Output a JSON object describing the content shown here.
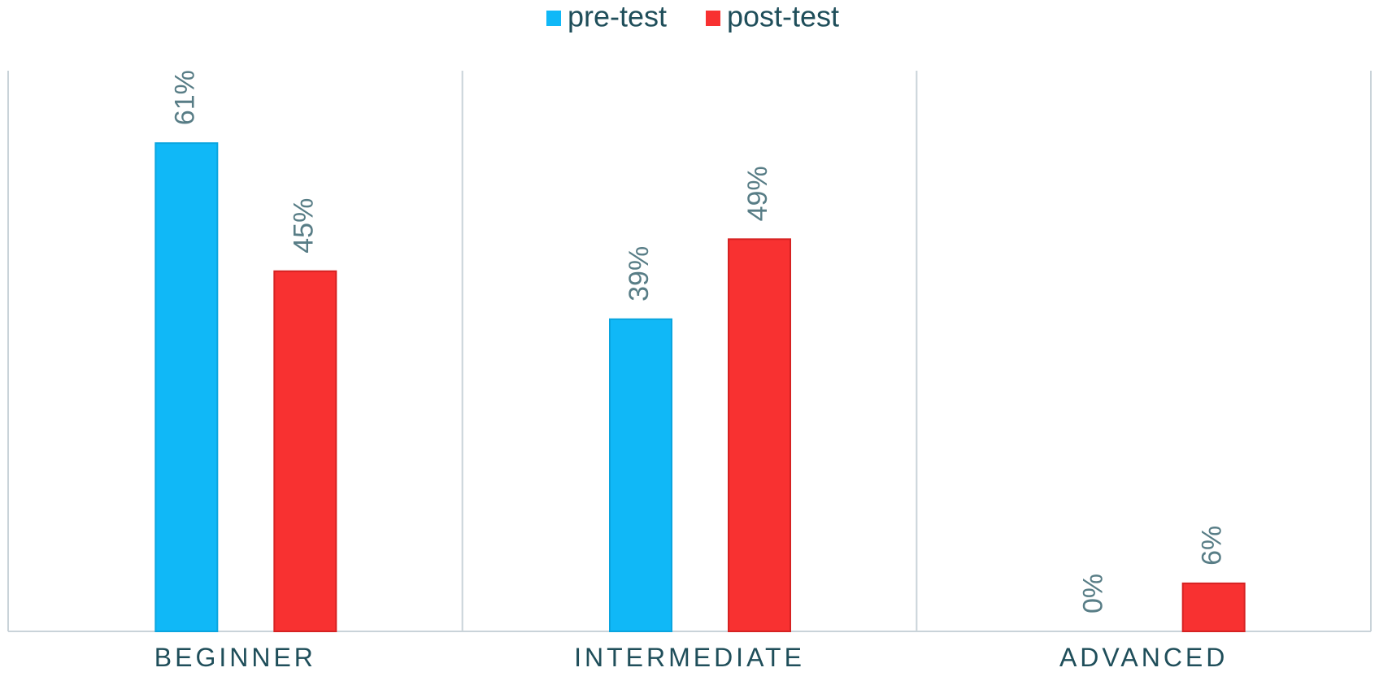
{
  "chart_data": {
    "type": "bar",
    "title": "",
    "xlabel": "",
    "ylabel": "",
    "ylim": [
      0,
      70
    ],
    "grid": false,
    "legend_position": "top-center",
    "categories": [
      "BEGINNER",
      "INTERMEDIATE",
      "ADVANCED"
    ],
    "series": [
      {
        "name": "pre-test",
        "color": "#10b8f7",
        "values": [
          61,
          39,
          0
        ],
        "labels": [
          "61%",
          "39%",
          "0%"
        ]
      },
      {
        "name": "post-test",
        "color": "#f83131",
        "values": [
          45,
          49,
          6
        ],
        "labels": [
          "45%",
          "49%",
          "6%"
        ]
      }
    ],
    "colors": {
      "axis": "#c9d3d9",
      "text": "#1f4e5a",
      "value_label": "#587d86"
    }
  }
}
